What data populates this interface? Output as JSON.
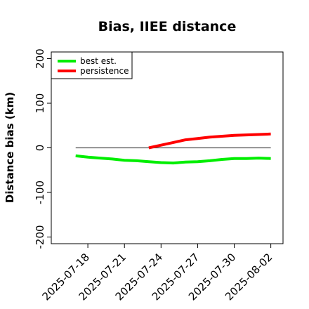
{
  "chart_data": {
    "type": "line",
    "title": "Bias, IIEE distance",
    "xlabel": "",
    "ylabel": "Distance bias (km)",
    "ylim": [
      -215,
      215
    ],
    "yticks": [
      -200,
      -100,
      0,
      100,
      200
    ],
    "xlim": [
      "2025-07-15",
      "2025-08-03"
    ],
    "xticks": [
      "2025-07-18",
      "2025-07-21",
      "2025-07-24",
      "2025-07-27",
      "2025-07-30",
      "2025-08-02"
    ],
    "reference_line": 0,
    "legend": {
      "position": "top-left"
    },
    "series": [
      {
        "name": "best est.",
        "color": "#00ee00",
        "points": [
          {
            "x": "2025-07-17",
            "y": -18
          },
          {
            "x": "2025-07-18",
            "y": -21
          },
          {
            "x": "2025-07-19",
            "y": -23
          },
          {
            "x": "2025-07-20",
            "y": -25
          },
          {
            "x": "2025-07-21",
            "y": -28
          },
          {
            "x": "2025-07-22",
            "y": -29
          },
          {
            "x": "2025-07-23",
            "y": -31
          },
          {
            "x": "2025-07-24",
            "y": -33
          },
          {
            "x": "2025-07-25",
            "y": -34
          },
          {
            "x": "2025-07-26",
            "y": -32
          },
          {
            "x": "2025-07-27",
            "y": -31
          },
          {
            "x": "2025-07-28",
            "y": -29
          },
          {
            "x": "2025-07-29",
            "y": -26
          },
          {
            "x": "2025-07-30",
            "y": -24
          },
          {
            "x": "2025-07-31",
            "y": -24
          },
          {
            "x": "2025-08-01",
            "y": -23
          },
          {
            "x": "2025-08-02",
            "y": -24
          }
        ]
      },
      {
        "name": "persistence",
        "color": "#ff0000",
        "points": [
          {
            "x": "2025-07-23",
            "y": 0
          },
          {
            "x": "2025-07-24",
            "y": 6
          },
          {
            "x": "2025-07-25",
            "y": 12
          },
          {
            "x": "2025-07-26",
            "y": 18
          },
          {
            "x": "2025-07-27",
            "y": 21
          },
          {
            "x": "2025-07-28",
            "y": 24
          },
          {
            "x": "2025-07-29",
            "y": 26
          },
          {
            "x": "2025-07-30",
            "y": 28
          },
          {
            "x": "2025-07-31",
            "y": 29
          },
          {
            "x": "2025-08-01",
            "y": 30
          },
          {
            "x": "2025-08-02",
            "y": 31
          }
        ]
      }
    ]
  }
}
